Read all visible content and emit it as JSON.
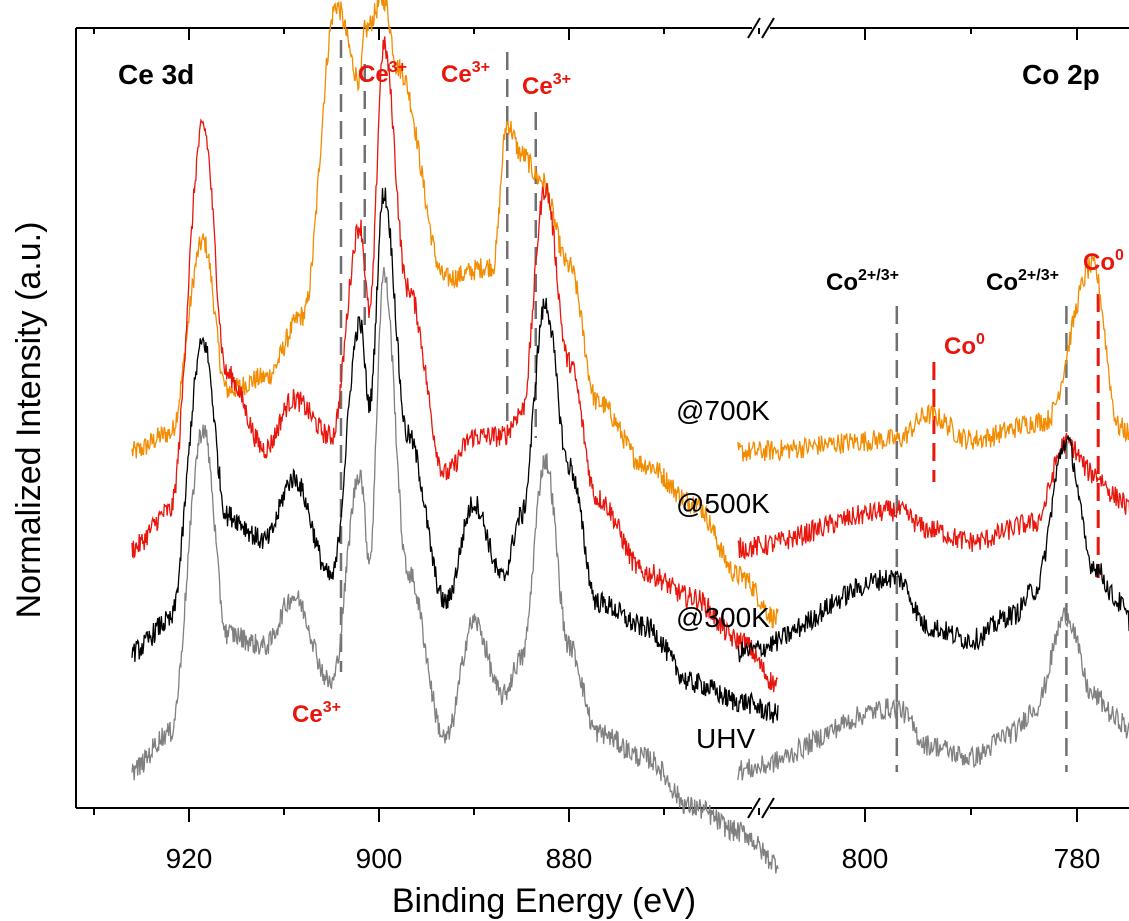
{
  "chart_data": {
    "type": "line",
    "title": "",
    "xlabel": "Binding Energy (eV)",
    "ylabel": "Normalized Intensity (a.u.)",
    "x_axis_reversed": true,
    "x_axis_broken": true,
    "panels": [
      {
        "label": "Ce 3d",
        "xlim": [
          928,
          855
        ],
        "xticks": [
          920,
          900,
          880
        ]
      },
      {
        "label": "Co 2p",
        "xlim": [
          812,
          775
        ],
        "xticks": [
          800,
          780
        ]
      }
    ],
    "series": [
      {
        "name": "@700K",
        "color": "#f28c00",
        "ce3d": [
          [
            926,
            0.0
          ],
          [
            922,
            0.03
          ],
          [
            918.5,
            0.34
          ],
          [
            916,
            0.1
          ],
          [
            912,
            0.12
          ],
          [
            908,
            0.22
          ],
          [
            904.5,
            0.72
          ],
          [
            902,
            0.6
          ],
          [
            901.5,
            0.68
          ],
          [
            899.5,
            0.73
          ],
          [
            898,
            0.62
          ],
          [
            893,
            0.28
          ],
          [
            888,
            0.3
          ],
          [
            886.5,
            0.53
          ],
          [
            885,
            0.48
          ],
          [
            883,
            0.44
          ],
          [
            880,
            0.3
          ],
          [
            877,
            0.08
          ],
          [
            872,
            -0.02
          ],
          [
            867,
            -0.08
          ],
          [
            862,
            -0.2
          ],
          [
            858,
            -0.27
          ]
        ],
        "co2p": [
          [
            812,
            0.0
          ],
          [
            797,
            0.02
          ],
          [
            794,
            0.06
          ],
          [
            790,
            0.02
          ],
          [
            783,
            0.05
          ],
          [
            778.5,
            0.3
          ],
          [
            776,
            0.04
          ],
          [
            775,
            0.03
          ]
        ]
      },
      {
        "name": "@500K",
        "color": "#e8160c",
        "ce3d": [
          [
            926,
            0.0
          ],
          [
            922,
            0.06
          ],
          [
            918.5,
            0.68
          ],
          [
            916,
            0.28
          ],
          [
            912,
            0.16
          ],
          [
            909,
            0.24
          ],
          [
            905,
            0.18
          ],
          [
            902,
            0.52
          ],
          [
            901,
            0.38
          ],
          [
            899.5,
            0.81
          ],
          [
            897,
            0.42
          ],
          [
            893,
            0.12
          ],
          [
            890,
            0.18
          ],
          [
            887,
            0.18
          ],
          [
            885,
            0.22
          ],
          [
            882.5,
            0.58
          ],
          [
            880,
            0.3
          ],
          [
            877,
            0.08
          ],
          [
            872,
            -0.04
          ],
          [
            867,
            -0.08
          ],
          [
            862,
            -0.15
          ],
          [
            858,
            -0.22
          ]
        ],
        "co2p": [
          [
            812,
            0.0
          ],
          [
            797,
            0.06
          ],
          [
            794,
            0.03
          ],
          [
            790,
            0.01
          ],
          [
            784,
            0.04
          ],
          [
            781,
            0.17
          ],
          [
            778.5,
            0.12
          ],
          [
            776,
            0.08
          ],
          [
            775,
            0.06
          ]
        ]
      },
      {
        "name": "@300K",
        "color": "#000000",
        "ce3d": [
          [
            926,
            0.0
          ],
          [
            922,
            0.05
          ],
          [
            918.5,
            0.5
          ],
          [
            916,
            0.22
          ],
          [
            912,
            0.18
          ],
          [
            909,
            0.28
          ],
          [
            905,
            0.12
          ],
          [
            902,
            0.53
          ],
          [
            901,
            0.4
          ],
          [
            899.5,
            0.74
          ],
          [
            897,
            0.35
          ],
          [
            893,
            0.08
          ],
          [
            890,
            0.24
          ],
          [
            887,
            0.12
          ],
          [
            885,
            0.22
          ],
          [
            882.5,
            0.56
          ],
          [
            880,
            0.3
          ],
          [
            877,
            0.08
          ],
          [
            872,
            0.04
          ],
          [
            867,
            -0.05
          ],
          [
            862,
            -0.08
          ],
          [
            858,
            -0.1
          ]
        ],
        "co2p": [
          [
            812,
            0.0
          ],
          [
            797,
            0.12
          ],
          [
            794,
            0.04
          ],
          [
            790,
            0.02
          ],
          [
            786,
            0.06
          ],
          [
            784,
            0.1
          ],
          [
            781,
            0.34
          ],
          [
            778.5,
            0.14
          ],
          [
            776,
            0.08
          ],
          [
            775,
            0.05
          ]
        ]
      },
      {
        "name": "UHV",
        "color": "#808080",
        "ce3d": [
          [
            926,
            0.0
          ],
          [
            922,
            0.06
          ],
          [
            918.5,
            0.55
          ],
          [
            916,
            0.22
          ],
          [
            912,
            0.2
          ],
          [
            909,
            0.28
          ],
          [
            905,
            0.14
          ],
          [
            902,
            0.48
          ],
          [
            901,
            0.34
          ],
          [
            899.5,
            0.8
          ],
          [
            897,
            0.32
          ],
          [
            893,
            0.05
          ],
          [
            890,
            0.24
          ],
          [
            887,
            0.12
          ],
          [
            885,
            0.18
          ],
          [
            882.5,
            0.5
          ],
          [
            880,
            0.2
          ],
          [
            877,
            0.06
          ],
          [
            872,
            0.02
          ],
          [
            867,
            -0.06
          ],
          [
            862,
            -0.1
          ],
          [
            858,
            -0.15
          ]
        ],
        "co2p": [
          [
            812,
            0.0
          ],
          [
            797,
            0.1
          ],
          [
            794,
            0.04
          ],
          [
            790,
            0.02
          ],
          [
            786,
            0.06
          ],
          [
            784,
            0.1
          ],
          [
            781,
            0.25
          ],
          [
            778.5,
            0.12
          ],
          [
            776,
            0.08
          ],
          [
            775,
            0.06
          ]
        ]
      }
    ],
    "reference_lines": [
      {
        "x": 904,
        "color": "#707070",
        "style": "dashed",
        "label": "Ce³⁺",
        "label_color": "#e8160c",
        "label_position": "bottom"
      },
      {
        "x": 901.5,
        "color": "#707070",
        "style": "dashed",
        "label": "Ce³⁺",
        "label_color": "#e8160c",
        "label_position": "top"
      },
      {
        "x": 886.5,
        "color": "#707070",
        "style": "dashed",
        "label": "Ce³⁺",
        "label_color": "#e8160c",
        "label_position": "top"
      },
      {
        "x": 883.5,
        "color": "#707070",
        "style": "dashed",
        "label": "Ce³⁺",
        "label_color": "#e8160c",
        "label_position": "top"
      },
      {
        "x": 797,
        "color": "#707070",
        "style": "dashed",
        "label": "Co²⁺ᐟ³⁺",
        "label_color": "#000000",
        "label_position": "top"
      },
      {
        "x": 793.5,
        "color": "#e8160c",
        "style": "dashed",
        "label": "Co⁰",
        "label_color": "#e8160c",
        "label_position": "top"
      },
      {
        "x": 781,
        "color": "#707070",
        "style": "dashed",
        "label": "Co²⁺ᐟ³⁺",
        "label_color": "#000000",
        "label_position": "top"
      },
      {
        "x": 778,
        "color": "#e8160c",
        "style": "dashed",
        "label": "Co⁰",
        "label_color": "#e8160c",
        "label_position": "top"
      }
    ],
    "grid": false,
    "legend": "inline labels next to each trace"
  },
  "labels": {
    "ce3d_title": "Ce 3d",
    "co2p_title": "Co 2p",
    "ce3p_base": "Ce",
    "ce3p_sup": "3+",
    "co_mixed_base": "Co",
    "co_mixed_sup": "2+/3+",
    "co0_base": "Co",
    "co0_sup": "0",
    "t700": "@700K",
    "t500": "@500K",
    "t300": "@300K",
    "uhv": "UHV",
    "xaxis": "Binding Energy (eV)",
    "yaxis": "Normalized Intensity (a.u.)",
    "tick920": "920",
    "tick900": "900",
    "tick880": "880",
    "tick800": "800",
    "tick780": "780"
  }
}
